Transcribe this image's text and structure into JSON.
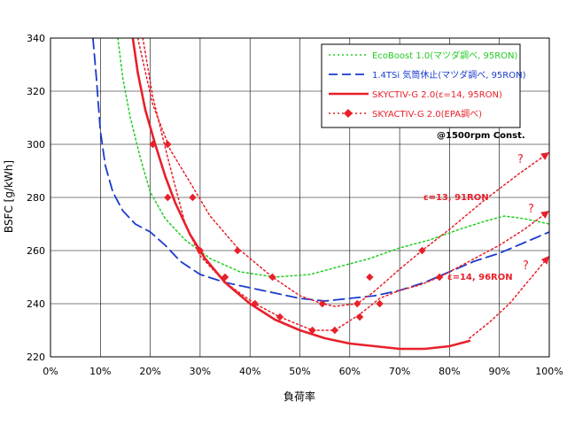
{
  "chart_data": {
    "type": "line",
    "title": "",
    "xlabel": "負荷率",
    "ylabel": "BSFC [g/kWh]",
    "xlim": [
      0,
      100
    ],
    "ylim": [
      220,
      340
    ],
    "x_ticks": [
      "0%",
      "10%",
      "20%",
      "30%",
      "40%",
      "50%",
      "60%",
      "70%",
      "80%",
      "90%",
      "100%"
    ],
    "y_ticks": [
      "220",
      "240",
      "260",
      "280",
      "300",
      "320",
      "340"
    ],
    "grid": true,
    "legend_position": "top-right",
    "colors": {
      "green": "#22cc22",
      "blue": "#1a3ccc",
      "red": "#e8202a"
    },
    "series": [
      {
        "name": "EcoBoost 1.0(マツダ調べ, 95RON)",
        "color": "#22cc22",
        "style": "dotted",
        "x": [
          13.5,
          14.5,
          16,
          18,
          20,
          23,
          27,
          32,
          38,
          45,
          52,
          58,
          64,
          70,
          76,
          82,
          87,
          91,
          95,
          100
        ],
        "y": [
          340,
          325,
          310,
          295,
          282,
          272,
          264,
          257,
          252,
          250,
          251,
          254,
          257,
          261,
          264,
          268,
          271,
          273,
          272,
          270
        ]
      },
      {
        "name": "1.4TSi 気筒休止(マツダ調べ, 95RON)",
        "color": "#1a3ccc",
        "style": "dashed",
        "x": [
          8.5,
          9.2,
          10,
          11,
          12.5,
          14.5,
          17,
          20,
          23,
          26,
          30,
          35,
          40,
          45,
          50,
          55,
          60,
          65,
          70,
          75,
          80,
          85,
          90,
          95,
          100
        ],
        "y": [
          340,
          325,
          305,
          292,
          282,
          275,
          270,
          267,
          262,
          256,
          251,
          248,
          246,
          244,
          242,
          241,
          242,
          243,
          245,
          248,
          252,
          256,
          259,
          263,
          267
        ]
      },
      {
        "name": "SKYCTIV-G 2.0(ε=14, 95RON)",
        "color": "#e8202a",
        "style": "solid",
        "x": [
          16.5,
          17.5,
          19,
          21,
          23,
          25,
          28,
          31,
          35,
          40,
          45,
          50,
          55,
          60,
          65,
          70,
          75,
          80,
          84
        ],
        "y": [
          340,
          327,
          313,
          300,
          288,
          278,
          266,
          257,
          248,
          240,
          234,
          230,
          227,
          225,
          224,
          223,
          223,
          224,
          226
        ]
      },
      {
        "name": "SKYACTIV-G 2.0(EPA調べ)",
        "color": "#e8202a",
        "style": "dotted-diamond",
        "markers": [
          [
            20.5,
            300
          ],
          [
            23.5,
            300
          ],
          [
            23.5,
            280
          ],
          [
            28.5,
            280
          ],
          [
            30,
            260
          ],
          [
            35,
            250
          ],
          [
            37.5,
            260
          ],
          [
            41,
            240
          ],
          [
            44.5,
            250
          ],
          [
            46,
            235
          ],
          [
            52.5,
            230
          ],
          [
            54.5,
            240
          ],
          [
            57,
            230
          ],
          [
            61.5,
            240
          ],
          [
            62,
            235
          ],
          [
            64,
            250
          ],
          [
            66,
            240
          ],
          [
            74.5,
            260
          ],
          [
            78,
            250
          ]
        ],
        "paths": [
          {
            "x": [
              17.5,
              20.5,
              24,
              28.5,
              32,
              37.5,
              44.5,
              50,
              54.5,
              57,
              61.5,
              64.5,
              67,
              70,
              74.5,
              80,
              87,
              94,
              100
            ],
            "y": [
              340,
              315,
              298,
              284,
              273,
              261,
              250,
              243,
              240,
              239,
              240,
              244,
              248,
              253,
              260,
              268,
              279,
              289,
              297
            ]
          },
          {
            "x": [
              18.5,
              20.5,
              23.5,
              27,
              30,
              35,
              41,
              46,
              52.5,
              57,
              62,
              66,
              70,
              74,
              78,
              84,
              90,
              95,
              100
            ],
            "y": [
              340,
              318,
              295,
              270,
              258,
              248,
              240,
              235,
              230,
              230,
              236,
              242,
              245,
              247,
              250,
              256,
              262,
              268,
              275
            ]
          },
          {
            "x": [
              84,
              88,
              92,
              96,
              100
            ],
            "y": [
              227,
              233,
              240,
              249,
              258
            ]
          }
        ]
      }
    ],
    "annotations": {
      "rpm": "@1500rpm Const.",
      "e13": "ε=13, 91RON",
      "e14": "ε=14, 96RON",
      "question": "?"
    }
  }
}
